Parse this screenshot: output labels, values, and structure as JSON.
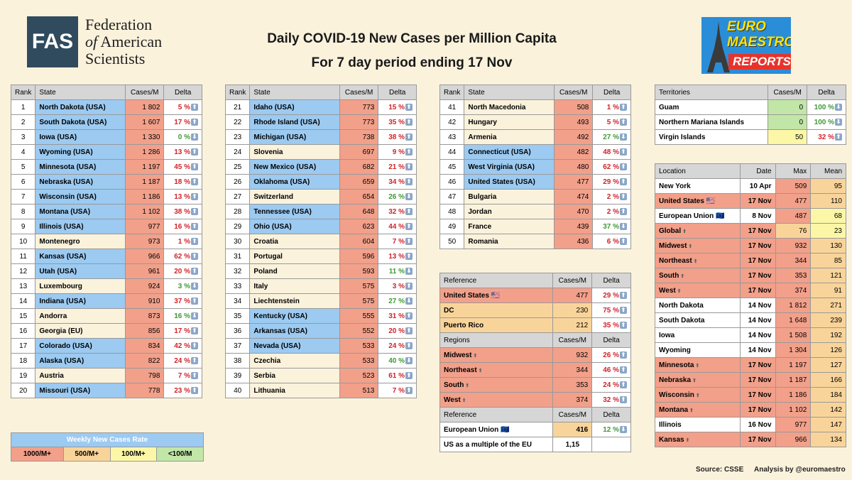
{
  "header": {
    "logo_abbr": "FAS",
    "logo_line1": "Federation",
    "logo_line2_of": "of",
    "logo_line2": "American",
    "logo_line3": "Scientists",
    "title": "Daily COVID-19 New Cases per Million Capita",
    "subtitle": "For 7 day period ending 17 Nov",
    "euro_line1": "EURO",
    "euro_line2": "MAESTRO",
    "euro_line3": "REPORTS"
  },
  "colors": {
    "c1000": "#f2a08a",
    "c500": "#f9d49a",
    "c100": "#fbf7a7",
    "clow": "#c2e6a7",
    "usa": "#9ccaf1"
  },
  "rank_headers": [
    "Rank",
    "State",
    "Cases/M",
    "Delta"
  ],
  "rank_tables": [
    [
      [
        "1",
        "North Dakota (USA)",
        "1 802",
        "5 %",
        "up",
        "usa",
        "c1000"
      ],
      [
        "2",
        "South Dakota (USA)",
        "1 607",
        "17 %",
        "up",
        "usa",
        "c1000"
      ],
      [
        "3",
        "Iowa (USA)",
        "1 330",
        "0 %",
        "down",
        "usa",
        "c1000"
      ],
      [
        "4",
        "Wyoming (USA)",
        "1 286",
        "13 %",
        "up",
        "usa",
        "c1000"
      ],
      [
        "5",
        "Minnesota (USA)",
        "1 197",
        "45 %",
        "up",
        "usa",
        "c1000"
      ],
      [
        "6",
        "Nebraska (USA)",
        "1 187",
        "18 %",
        "up",
        "usa",
        "c1000"
      ],
      [
        "7",
        "Wisconsin (USA)",
        "1 186",
        "13 %",
        "up",
        "usa",
        "c1000"
      ],
      [
        "8",
        "Montana (USA)",
        "1 102",
        "38 %",
        "up",
        "usa",
        "c1000"
      ],
      [
        "9",
        "Illinois (USA)",
        "977",
        "16 %",
        "up",
        "usa",
        "c1000"
      ],
      [
        "10",
        "Montenegro",
        "973",
        "1 %",
        "up",
        "oth",
        "c1000"
      ],
      [
        "11",
        "Kansas (USA)",
        "966",
        "62 %",
        "up",
        "usa",
        "c1000"
      ],
      [
        "12",
        "Utah (USA)",
        "961",
        "20 %",
        "up",
        "usa",
        "c1000"
      ],
      [
        "13",
        "Luxembourg",
        "924",
        "3 %",
        "down",
        "oth",
        "c1000"
      ],
      [
        "14",
        "Indiana (USA)",
        "910",
        "37 %",
        "up",
        "usa",
        "c1000"
      ],
      [
        "15",
        "Andorra",
        "873",
        "16 %",
        "down",
        "oth",
        "c1000"
      ],
      [
        "16",
        "Georgia (EU)",
        "856",
        "17 %",
        "up",
        "oth",
        "c1000"
      ],
      [
        "17",
        "Colorado (USA)",
        "834",
        "42 %",
        "up",
        "usa",
        "c1000"
      ],
      [
        "18",
        "Alaska (USA)",
        "822",
        "24 %",
        "up",
        "usa",
        "c1000"
      ],
      [
        "19",
        "Austria",
        "798",
        "7 %",
        "up",
        "oth",
        "c1000"
      ],
      [
        "20",
        "Missouri (USA)",
        "778",
        "23 %",
        "up",
        "usa",
        "c1000"
      ]
    ],
    [
      [
        "21",
        "Idaho (USA)",
        "773",
        "15 %",
        "up",
        "usa",
        "c1000"
      ],
      [
        "22",
        "Rhode Island (USA)",
        "773",
        "35 %",
        "up",
        "usa",
        "c1000"
      ],
      [
        "23",
        "Michigan (USA)",
        "738",
        "38 %",
        "up",
        "usa",
        "c1000"
      ],
      [
        "24",
        "Slovenia",
        "697",
        "9 %",
        "up",
        "oth",
        "c1000"
      ],
      [
        "25",
        "New Mexico (USA)",
        "682",
        "21 %",
        "up",
        "usa",
        "c1000"
      ],
      [
        "26",
        "Oklahoma (USA)",
        "659",
        "34 %",
        "up",
        "usa",
        "c1000"
      ],
      [
        "27",
        "Switzerland",
        "654",
        "26 %",
        "down",
        "oth",
        "c1000"
      ],
      [
        "28",
        "Tennessee (USA)",
        "648",
        "32 %",
        "up",
        "usa",
        "c1000"
      ],
      [
        "29",
        "Ohio (USA)",
        "623",
        "44 %",
        "up",
        "usa",
        "c1000"
      ],
      [
        "30",
        "Croatia",
        "604",
        "7 %",
        "up",
        "oth",
        "c1000"
      ],
      [
        "31",
        "Portugal",
        "596",
        "13 %",
        "up",
        "oth",
        "c1000"
      ],
      [
        "32",
        "Poland",
        "593",
        "11 %",
        "down",
        "oth",
        "c1000"
      ],
      [
        "33",
        "Italy",
        "575",
        "3 %",
        "up",
        "oth",
        "c1000"
      ],
      [
        "34",
        "Liechtenstein",
        "575",
        "27 %",
        "down",
        "oth",
        "c1000"
      ],
      [
        "35",
        "Kentucky (USA)",
        "555",
        "31 %",
        "up",
        "usa",
        "c1000"
      ],
      [
        "36",
        "Arkansas (USA)",
        "552",
        "20 %",
        "up",
        "usa",
        "c1000"
      ],
      [
        "37",
        "Nevada (USA)",
        "533",
        "24 %",
        "up",
        "usa",
        "c1000"
      ],
      [
        "38",
        "Czechia",
        "533",
        "40 %",
        "down",
        "oth",
        "c1000"
      ],
      [
        "39",
        "Serbia",
        "523",
        "61 %",
        "up",
        "oth",
        "c1000"
      ],
      [
        "40",
        "Lithuania",
        "513",
        "7 %",
        "up",
        "oth",
        "c1000"
      ]
    ],
    [
      [
        "41",
        "North Macedonia",
        "508",
        "1 %",
        "up",
        "oth",
        "c1000"
      ],
      [
        "42",
        "Hungary",
        "493",
        "5 %",
        "up",
        "oth",
        "c1000"
      ],
      [
        "43",
        "Armenia",
        "492",
        "27 %",
        "down",
        "oth",
        "c1000"
      ],
      [
        "44",
        "Connecticut (USA)",
        "482",
        "48 %",
        "up",
        "usa",
        "c1000"
      ],
      [
        "45",
        "West Virginia (USA)",
        "480",
        "62 %",
        "up",
        "usa",
        "c1000"
      ],
      [
        "46",
        "United States (USA)",
        "477",
        "29 %",
        "up",
        "usa",
        "c1000"
      ],
      [
        "47",
        "Bulgaria",
        "474",
        "2 %",
        "up",
        "oth",
        "c1000"
      ],
      [
        "48",
        "Jordan",
        "470",
        "2 %",
        "up",
        "oth",
        "c1000"
      ],
      [
        "49",
        "France",
        "439",
        "37 %",
        "down",
        "oth",
        "c1000"
      ],
      [
        "50",
        "Romania",
        "436",
        "6 %",
        "up",
        "oth",
        "c1000"
      ]
    ]
  ],
  "reference": {
    "h1": "Reference",
    "h_cases": "Cases/M",
    "h_delta": "Delta",
    "rows1": [
      [
        "United States",
        "477",
        "29 %",
        "up",
        "c1000",
        "us"
      ],
      [
        "DC",
        "230",
        "75 %",
        "up",
        "c500",
        ""
      ],
      [
        "Puerto Rico",
        "212",
        "35 %",
        "up",
        "c500",
        ""
      ]
    ],
    "h2": "Regions",
    "rows2": [
      [
        "Midwest",
        "932",
        "26 %",
        "up",
        "c1000",
        "top"
      ],
      [
        "Northeast",
        "344",
        "46 %",
        "up",
        "c1000",
        "top"
      ],
      [
        "South",
        "353",
        "24 %",
        "up",
        "c1000",
        "top"
      ],
      [
        "West",
        "374",
        "32 %",
        "up",
        "c1000",
        "top"
      ]
    ],
    "h3": "Reference",
    "eu_label": "European Union",
    "eu_cases": "416",
    "eu_delta": "12 %",
    "mult_label": "US as a multiple of the EU",
    "mult_value": "1,15"
  },
  "territories": {
    "h1": "Territories",
    "h_cases": "Cases/M",
    "h_delta": "Delta",
    "rows": [
      [
        "Guam",
        "0",
        "100 %",
        "down",
        "clow"
      ],
      [
        "Northern Mariana Islands",
        "0",
        "100 %",
        "down",
        "clow"
      ],
      [
        "Virgin Islands",
        "50",
        "32 %",
        "up",
        "c100"
      ]
    ]
  },
  "locations": {
    "headers": [
      "Location",
      "Date",
      "Max",
      "Mean"
    ],
    "rows": [
      [
        "New York",
        "",
        "10 Apr",
        "509",
        "95",
        "c1000",
        "c500",
        "wh"
      ],
      [
        "United States",
        "us",
        "17 Nov",
        "477",
        "110",
        "c1000",
        "c500",
        "c1000"
      ],
      [
        "European Union",
        "eu",
        "8 Nov",
        "487",
        "68",
        "c1000",
        "c100",
        "wh"
      ],
      [
        "Global",
        "top",
        "17 Nov",
        "76",
        "23",
        "c500",
        "c100",
        "c1000"
      ],
      [
        "Midwest",
        "top",
        "17 Nov",
        "932",
        "130",
        "c1000",
        "c500",
        "c1000"
      ],
      [
        "Northeast",
        "top",
        "17 Nov",
        "344",
        "85",
        "c1000",
        "c500",
        "c1000"
      ],
      [
        "South",
        "top",
        "17 Nov",
        "353",
        "121",
        "c1000",
        "c500",
        "c1000"
      ],
      [
        "West",
        "top",
        "17 Nov",
        "374",
        "91",
        "c1000",
        "c500",
        "c1000"
      ],
      [
        "North Dakota",
        "",
        "14 Nov",
        "1 812",
        "271",
        "c1000",
        "c500",
        "wh"
      ],
      [
        "South Dakota",
        "",
        "14 Nov",
        "1 648",
        "239",
        "c1000",
        "c500",
        "wh"
      ],
      [
        "Iowa",
        "",
        "14 Nov",
        "1 508",
        "192",
        "c1000",
        "c500",
        "wh"
      ],
      [
        "Wyoming",
        "",
        "14 Nov",
        "1 304",
        "126",
        "c1000",
        "c500",
        "wh"
      ],
      [
        "Minnesota",
        "top",
        "17 Nov",
        "1 197",
        "127",
        "c1000",
        "c500",
        "c1000"
      ],
      [
        "Nebraska",
        "top",
        "17 Nov",
        "1 187",
        "166",
        "c1000",
        "c500",
        "c1000"
      ],
      [
        "Wisconsin",
        "top",
        "17 Nov",
        "1 186",
        "184",
        "c1000",
        "c500",
        "c1000"
      ],
      [
        "Montana",
        "top",
        "17 Nov",
        "1 102",
        "142",
        "c1000",
        "c500",
        "c1000"
      ],
      [
        "Illinois",
        "",
        "16 Nov",
        "977",
        "147",
        "c1000",
        "c500",
        "wh"
      ],
      [
        "Kansas",
        "top",
        "17 Nov",
        "966",
        "134",
        "c1000",
        "c500",
        "c1000"
      ]
    ]
  },
  "legend": {
    "title": "Weekly New Cases Rate",
    "items": [
      "1000/M+",
      "500/M+",
      "100/M+",
      "<100/M"
    ]
  },
  "footer": {
    "source": "Source: CSSE",
    "analysis": "Analysis by @euromaestro"
  },
  "glyphs": {
    "up": "⬆",
    "down": "⬇",
    "top": "TOP",
    "us_flag": "🇺🇸",
    "eu_flag": "🇪🇺"
  }
}
